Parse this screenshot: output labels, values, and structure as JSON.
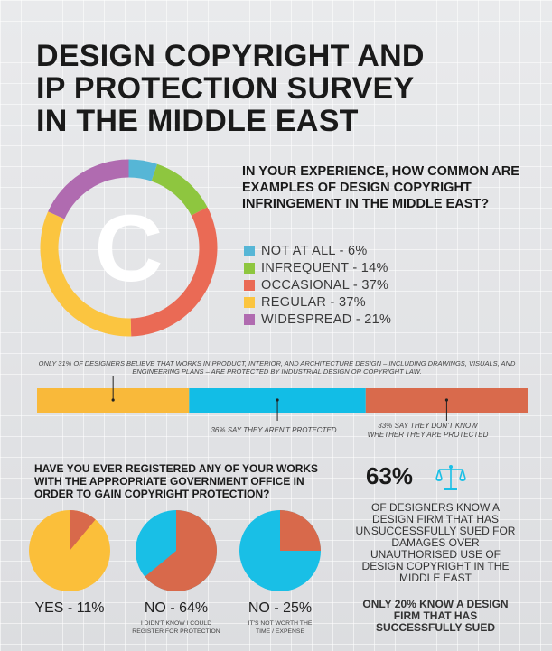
{
  "title": {
    "line1": "DESIGN COPYRIGHT AND",
    "line2": "IP PROTECTION SURVEY",
    "line3": "IN THE MIDDLE EAST"
  },
  "colors": {
    "blue": "#56b6d6",
    "green": "#8ec63f",
    "red": "#ea6a55",
    "yellow": "#fbc540",
    "purple": "#b06bb0",
    "bar_orange": "#f9b93a",
    "bar_cyan": "#12bde6",
    "bar_brick": "#d96a4c",
    "pie_yellow": "#fbbf3a",
    "pie_cyan": "#19bfe6",
    "pie_brick": "#d8694b"
  },
  "copyright_symbol": "C",
  "q1": {
    "text": "IN YOUR EXPERIENCE, HOW COMMON ARE EXAMPLES OF DESIGN COPYRIGHT INFRINGEMENT IN THE MIDDLE EAST?"
  },
  "bar": {
    "note": "ONLY 31% OF DESIGNERS BELIEVE THAT WORKS IN PRODUCT, INTERIOR, AND ARCHITECTURE DESIGN – INCLUDING DRAWINGS, VISUALS, AND ENGINEERING PLANS – ARE PROTECTED BY INDUSTRIAL DESIGN OR COPYRIGHT LAW.",
    "label_2": "36% SAY THEY AREN'T PROTECTED",
    "label_3a": "33% SAY THEY DON'T KNOW",
    "label_3b": "WHETHER THEY ARE PROTECTED"
  },
  "q2": {
    "text": "HAVE YOU EVER REGISTERED ANY OF YOUR WORKS WITH THE APPROPRIATE GOVERNMENT OFFICE IN ORDER TO GAIN COPYRIGHT PROTECTION?"
  },
  "pies": {
    "p1_label": "YES - 11%",
    "p2_label": "NO - 64%",
    "p2_sub_1": "I DIDN'T KNOW I COULD",
    "p2_sub_2": "REGISTER FOR PROTECTION",
    "p3_label": "NO - 25%",
    "p3_sub_1": "IT'S NOT WORTH THE",
    "p3_sub_2": "TIME / EXPENSE"
  },
  "stat": {
    "percent": "63%",
    "text": "OF DESIGNERS KNOW A DESIGN FIRM THAT HAS UNSUCCESSFULLY SUED FOR DAMAGES OVER UNAUTHORISED USE OF DESIGN COPYRIGHT IN THE MIDDLE EAST",
    "text2": "ONLY 20% KNOW A DESIGN FIRM THAT HAS SUCCESSFULLY SUED",
    "icon": "scales-icon"
  },
  "chart_data": [
    {
      "type": "pie",
      "title": "IN YOUR EXPERIENCE, HOW COMMON ARE EXAMPLES OF DESIGN COPYRIGHT INFRINGEMENT IN THE MIDDLE EAST?",
      "categories": [
        "NOT AT ALL",
        "INFREQUENT",
        "OCCASIONAL",
        "REGULAR",
        "WIDESPREAD"
      ],
      "values": [
        6,
        14,
        37,
        37,
        21
      ],
      "labels": [
        "NOT AT ALL - 6%",
        "INFREQUENT - 14%",
        "OCCASIONAL - 37%",
        "REGULAR - 37%",
        "WIDESPREAD - 21%"
      ],
      "colors": [
        "#56b6d6",
        "#8ec63f",
        "#ea6a55",
        "#fbc540",
        "#b06bb0"
      ],
      "legend": "right"
    },
    {
      "type": "bar",
      "stacked": true,
      "categories": [
        "31%",
        "36%",
        "33%"
      ],
      "values": [
        31,
        36,
        33
      ],
      "colors": [
        "#f9b93a",
        "#12bde6",
        "#d96a4c"
      ]
    },
    {
      "type": "pie",
      "title": "HAVE YOU EVER REGISTERED ANY OF YOUR WORKS WITH THE APPROPRIATE GOVERNMENT OFFICE IN ORDER TO GAIN COPYRIGHT PROTECTION?",
      "pies": [
        {
          "label": "YES - 11%",
          "value": 11
        },
        {
          "label": "NO - 64%",
          "value": 64
        },
        {
          "label": "NO - 25%",
          "value": 25
        }
      ]
    }
  ]
}
